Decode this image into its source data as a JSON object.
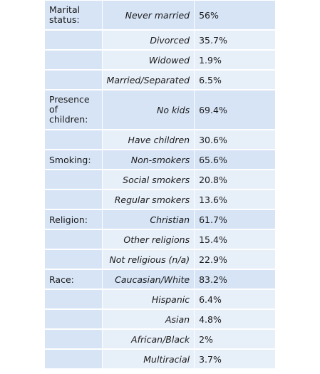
{
  "table": {
    "groups": [
      {
        "category": "Marital\nstatus:",
        "rows": [
          {
            "label": "Never married",
            "value": "56%"
          },
          {
            "label": "Divorced",
            "value": "35.7%"
          },
          {
            "label": "Widowed",
            "value": "1.9%"
          },
          {
            "label": "Married/Separated",
            "value": "6.5%"
          }
        ]
      },
      {
        "category": "Presence\nof\nchildren:",
        "rows": [
          {
            "label": "No kids",
            "value": "69.4%"
          },
          {
            "label": "Have children",
            "value": "30.6%"
          }
        ]
      },
      {
        "category": "Smoking:",
        "rows": [
          {
            "label": "Non-smokers",
            "value": "65.6%"
          },
          {
            "label": "Social smokers",
            "value": "20.8%"
          },
          {
            "label": "Regular smokers",
            "value": "13.6%"
          }
        ]
      },
      {
        "category": "Religion:",
        "rows": [
          {
            "label": "Christian",
            "value": "61.7%"
          },
          {
            "label": "Other religions",
            "value": "15.4%"
          },
          {
            "label": "Not religious (n/a)",
            "value": "22.9%"
          }
        ]
      },
      {
        "category": "Race:",
        "rows": [
          {
            "label": "Caucasian/White",
            "value": "83.2%"
          },
          {
            "label": "Hispanic",
            "value": "6.4%"
          },
          {
            "label": "Asian",
            "value": "4.8%"
          },
          {
            "label": "African/Black",
            "value": "2%"
          },
          {
            "label": "Multiracial",
            "value": "3.7%"
          }
        ]
      }
    ],
    "colors": {
      "category_bg": "#d6e4f6",
      "row_bg": "#e7eff9",
      "text": "#1a1a1a"
    }
  }
}
